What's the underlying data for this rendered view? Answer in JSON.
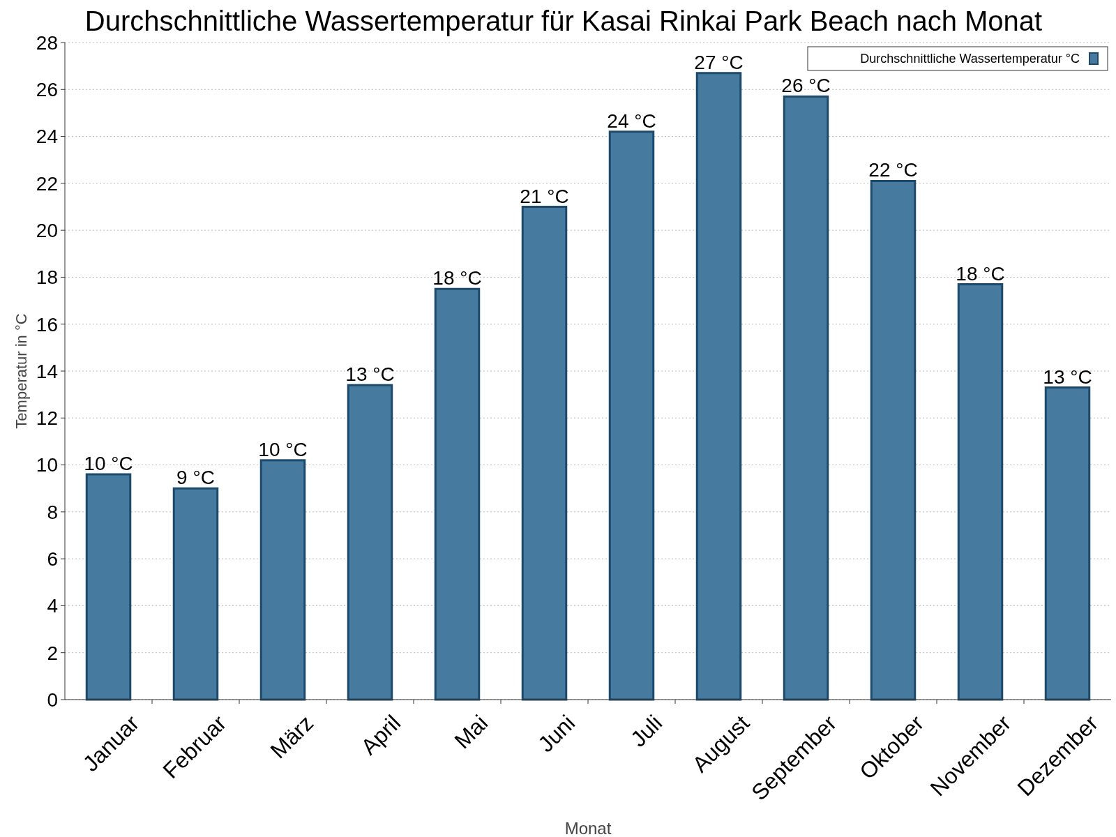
{
  "chart_data": {
    "type": "bar",
    "title": "Durchschnittliche Wassertemperatur für Kasai Rinkai Park Beach nach Monat",
    "xlabel": "Monat",
    "ylabel": "Temperatur in °C",
    "categories": [
      "Januar",
      "Februar",
      "März",
      "April",
      "Mai",
      "Juni",
      "Juli",
      "August",
      "September",
      "Oktober",
      "November",
      "Dezember"
    ],
    "series": [
      {
        "name": "Durchschnittliche Wassertemperatur °C",
        "color": "#467a9e",
        "values": [
          9.6,
          9.0,
          10.2,
          13.4,
          17.5,
          21.0,
          24.2,
          26.7,
          25.7,
          22.1,
          17.7,
          13.3
        ],
        "value_labels": [
          "10 °C",
          "9 °C",
          "10 °C",
          "13 °C",
          "18 °C",
          "21 °C",
          "24 °C",
          "27 °C",
          "26 °C",
          "22 °C",
          "18 °C",
          "13 °C"
        ]
      }
    ],
    "ylim": [
      0,
      28
    ],
    "yticks": [
      0,
      2,
      4,
      6,
      8,
      10,
      12,
      14,
      16,
      18,
      20,
      22,
      24,
      26,
      28
    ],
    "grid": "y",
    "legend": "top right"
  }
}
